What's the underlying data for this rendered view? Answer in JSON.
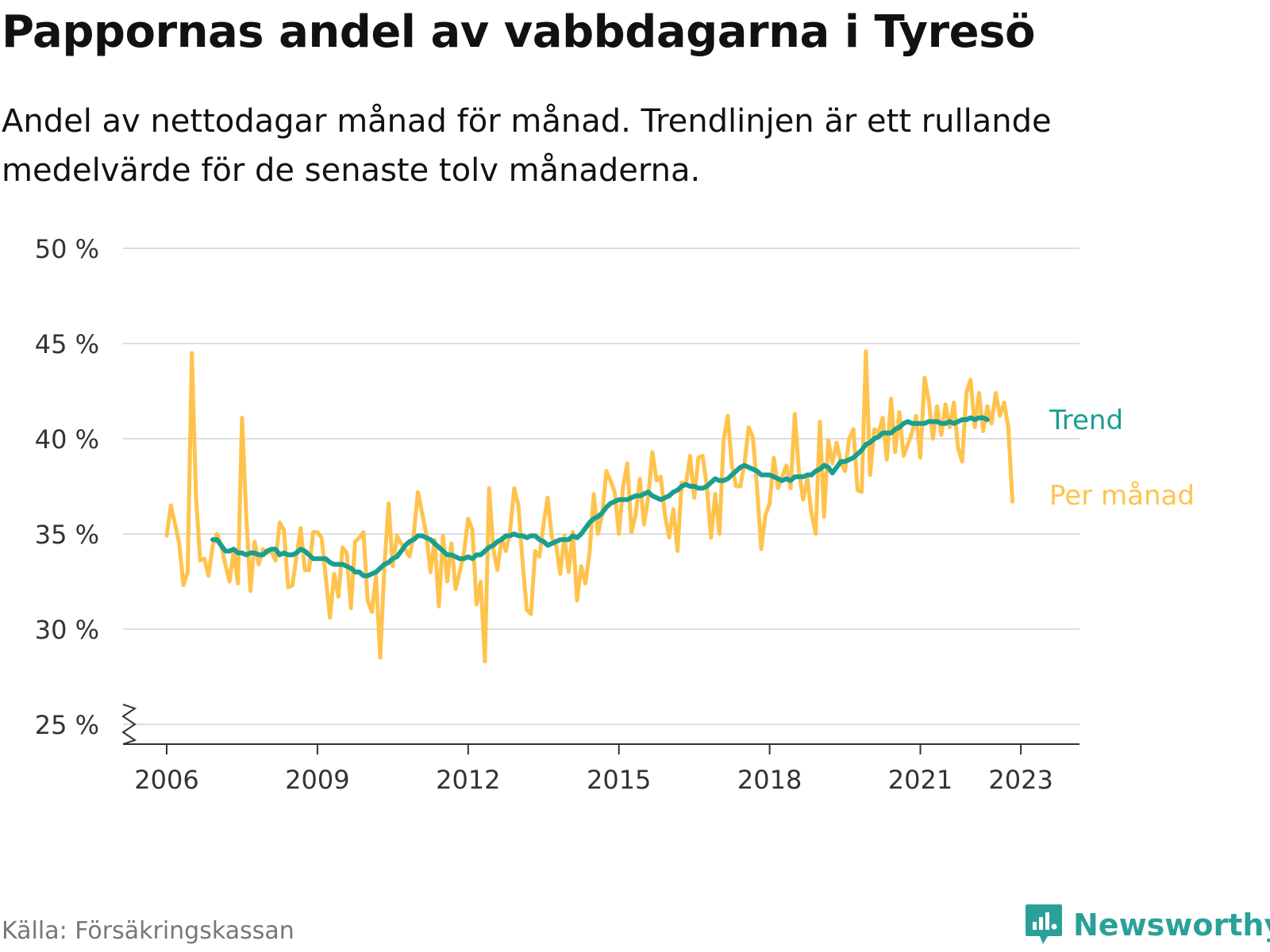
{
  "header": {
    "title": "Pappornas andel av vabbdagarna i Tyresö",
    "subtitle": "Andel av nettodagar månad för månad. Trendlinjen är ett rullande medelvärde för de senaste tolv månaderna."
  },
  "footer": {
    "source": "Källa: Försäkringskassan",
    "brand": "Newsworthy",
    "brand_icon": "bar-chart-speech-bubble-icon"
  },
  "colors": {
    "monthly": "#ffc34d",
    "trend": "#1a9e8f",
    "grid": "#dddddd",
    "axis": "#333333",
    "brand": "#2aa198"
  },
  "chart_data": {
    "type": "line",
    "ylim": [
      25,
      50
    ],
    "y_broken_at_bottom": true,
    "yticks": [
      25,
      30,
      35,
      40,
      45,
      50
    ],
    "ytick_labels": [
      "25 %",
      "30 %",
      "35 %",
      "40 %",
      "45 %",
      "50 %"
    ],
    "xlim": [
      2005.8,
      2024.0
    ],
    "xticks": [
      2006,
      2009,
      2012,
      2015,
      2018,
      2021,
      2023
    ],
    "xtick_labels": [
      "2006",
      "2009",
      "2012",
      "2015",
      "2018",
      "2021",
      "2023"
    ],
    "grid": true,
    "series": [
      {
        "name": "Per månad",
        "start_year": 2006,
        "values": [
          34.9,
          36.5,
          35.5,
          34.5,
          32.3,
          33.0,
          44.5,
          37.0,
          33.6,
          33.7,
          32.8,
          34.4,
          35.0,
          34.4,
          33.4,
          32.5,
          34.1,
          32.4,
          41.1,
          36.0,
          32.0,
          34.6,
          33.4,
          34.2,
          34.0,
          34.1,
          33.6,
          35.6,
          35.2,
          32.2,
          32.3,
          33.8,
          35.3,
          33.1,
          33.1,
          35.1,
          35.1,
          34.8,
          32.7,
          30.6,
          32.9,
          31.7,
          34.3,
          34.0,
          31.1,
          34.6,
          34.8,
          35.1,
          31.5,
          30.9,
          32.8,
          28.5,
          33.3,
          36.6,
          33.3,
          34.9,
          34.5,
          34.2,
          33.8,
          35.0,
          37.2,
          36.1,
          35.0,
          33.0,
          34.7,
          31.2,
          34.9,
          32.5,
          34.5,
          32.1,
          33.0,
          34.0,
          35.8,
          35.2,
          31.3,
          32.5,
          28.3,
          37.4,
          34.2,
          33.1,
          34.8,
          34.1,
          35.1,
          37.4,
          36.5,
          33.5,
          31.0,
          30.8,
          34.1,
          33.8,
          35.5,
          36.9,
          34.8,
          34.4,
          32.9,
          34.9,
          33.0,
          35.1,
          31.5,
          33.3,
          32.4,
          34.0,
          37.1,
          35.0,
          36.0,
          38.3,
          37.8,
          37.2,
          35.0,
          37.5,
          38.7,
          35.1,
          36.0,
          37.9,
          35.5,
          36.9,
          39.3,
          37.8,
          38.0,
          36.0,
          34.8,
          36.3,
          34.1,
          37.7,
          37.6,
          39.1,
          36.9,
          39.0,
          39.1,
          37.5,
          34.8,
          37.1,
          35.0,
          39.9,
          41.2,
          38.6,
          37.5,
          37.5,
          38.7,
          40.6,
          40.1,
          37.4,
          34.2,
          36.0,
          36.6,
          39.0,
          37.4,
          38.0,
          38.6,
          37.4,
          41.3,
          38.3,
          36.8,
          37.9,
          36.1,
          35.0,
          40.9,
          35.9,
          39.9,
          38.7,
          39.8,
          38.8,
          38.3,
          40.0,
          40.5,
          37.3,
          37.2,
          44.6,
          38.1,
          40.5,
          40.3,
          41.1,
          38.9,
          42.1,
          39.3,
          41.4,
          39.1,
          39.7,
          40.3,
          41.2,
          39.0,
          43.2,
          42.0,
          40.0,
          41.7,
          40.2,
          41.8,
          40.6,
          41.9,
          39.5,
          38.8,
          42.4,
          43.1,
          40.6,
          42.4,
          40.4,
          41.7,
          40.8,
          42.4,
          41.2,
          41.9,
          40.6,
          36.7
        ]
      },
      {
        "name": "Trend",
        "start_year": 2006,
        "start_month_index": 11,
        "values": [
          34.7,
          34.7,
          34.4,
          34.1,
          34.1,
          34.2,
          34.0,
          34.0,
          33.9,
          34.0,
          34.0,
          33.9,
          33.9,
          34.1,
          34.2,
          34.2,
          33.9,
          34.0,
          33.9,
          33.9,
          34.0,
          34.2,
          34.1,
          33.9,
          33.7,
          33.7,
          33.7,
          33.7,
          33.5,
          33.4,
          33.4,
          33.4,
          33.3,
          33.2,
          33.0,
          33.0,
          32.8,
          32.8,
          32.9,
          33.0,
          33.2,
          33.4,
          33.5,
          33.7,
          33.8,
          34.1,
          34.4,
          34.6,
          34.7,
          34.9,
          34.9,
          34.8,
          34.7,
          34.5,
          34.3,
          34.1,
          33.9,
          33.9,
          33.8,
          33.7,
          33.7,
          33.8,
          33.7,
          33.9,
          33.9,
          34.1,
          34.3,
          34.4,
          34.6,
          34.7,
          34.9,
          34.9,
          35.0,
          34.9,
          34.9,
          34.8,
          34.9,
          34.9,
          34.7,
          34.6,
          34.4,
          34.5,
          34.6,
          34.7,
          34.7,
          34.7,
          34.9,
          34.8,
          35.0,
          35.3,
          35.6,
          35.8,
          35.9,
          36.1,
          36.4,
          36.6,
          36.7,
          36.8,
          36.8,
          36.8,
          36.9,
          37.0,
          37.0,
          37.1,
          37.2,
          37.0,
          36.9,
          36.8,
          36.9,
          37.0,
          37.2,
          37.3,
          37.5,
          37.6,
          37.5,
          37.5,
          37.4,
          37.4,
          37.5,
          37.7,
          37.9,
          37.8,
          37.8,
          37.9,
          38.1,
          38.3,
          38.5,
          38.6,
          38.5,
          38.4,
          38.3,
          38.1,
          38.1,
          38.1,
          38.0,
          37.9,
          37.8,
          37.9,
          37.8,
          38.0,
          38.0,
          38.0,
          38.1,
          38.1,
          38.3,
          38.4,
          38.6,
          38.5,
          38.2,
          38.5,
          38.8,
          38.8,
          38.9,
          39.0,
          39.2,
          39.4,
          39.7,
          39.8,
          40.0,
          40.1,
          40.3,
          40.3,
          40.3,
          40.5,
          40.6,
          40.8,
          40.9,
          40.8,
          40.8,
          40.8,
          40.8,
          40.9,
          40.9,
          40.9,
          40.8,
          40.8,
          40.9,
          40.8,
          40.9,
          41.0,
          41.0,
          41.1,
          41.0,
          41.1,
          41.1,
          41.0
        ]
      }
    ],
    "end_labels": [
      "Trend",
      "Per månad"
    ]
  }
}
